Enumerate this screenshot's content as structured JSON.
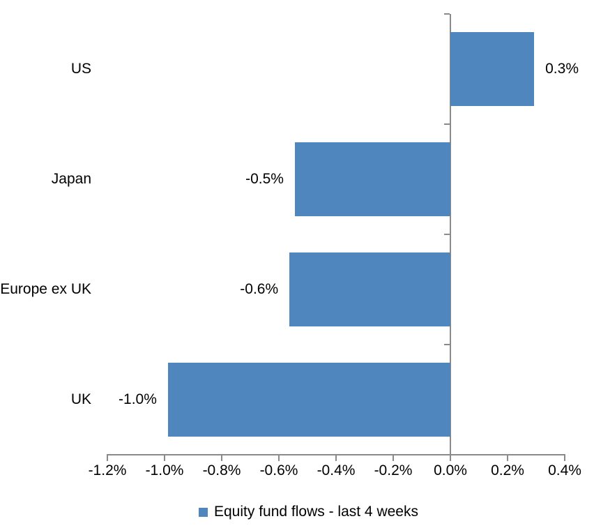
{
  "chart_data": {
    "type": "bar",
    "orientation": "horizontal",
    "title": "",
    "categories": [
      "US",
      "Japan",
      "Europe ex UK",
      "UK"
    ],
    "series": [
      {
        "name": "Equity fund flows - last 4 weeks",
        "values": [
          0.3,
          -0.5,
          -0.6,
          -1.0
        ],
        "values_precise_pct": [
          0.293,
          -0.544,
          -0.563,
          -0.988
        ],
        "data_labels": [
          "0.3%",
          "-0.5%",
          "-0.6%",
          "-1.0%"
        ]
      }
    ],
    "xlabel": "",
    "ylabel": "",
    "xlim": [
      -1.2,
      0.4
    ],
    "x_tick_values": [
      -1.2,
      -1.0,
      -0.8,
      -0.6,
      -0.4,
      -0.2,
      0.0,
      0.2,
      0.4
    ],
    "x_tick_labels": [
      "-1.2%",
      "-1.0%",
      "-0.8%",
      "-0.6%",
      "-0.4%",
      "-0.2%",
      "0.0%",
      "0.2%",
      "0.4%"
    ],
    "grid": false,
    "legend": {
      "position": "bottom",
      "label": "Equity fund flows - last 4 weeks"
    },
    "colors": {
      "bar": "#4F86BE",
      "axis": "#8A8A8A",
      "text": "#000000",
      "background": "#FFFFFF"
    }
  }
}
